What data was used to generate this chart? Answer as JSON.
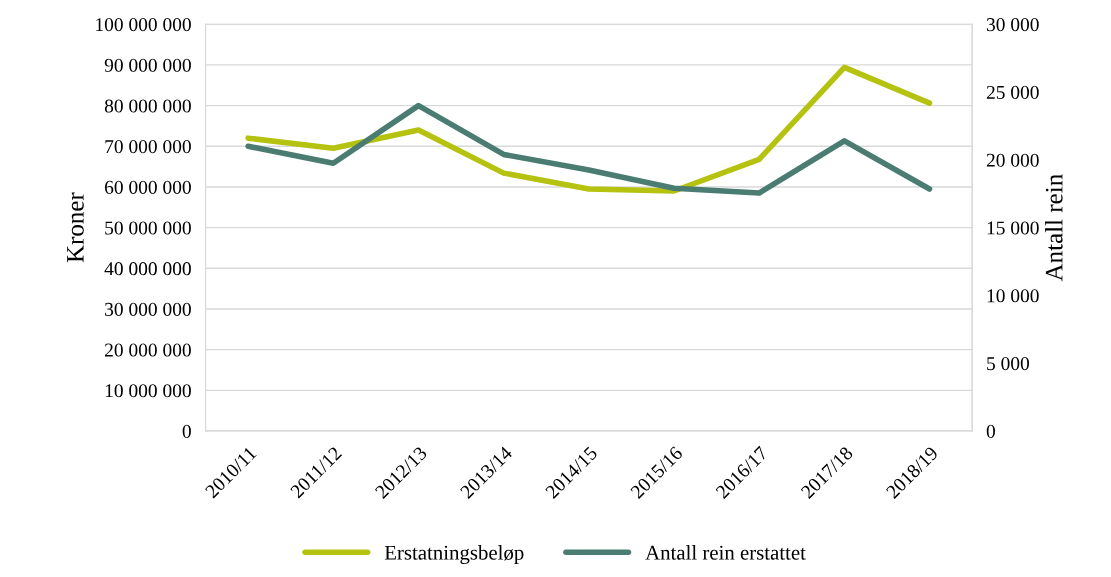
{
  "chart_data": {
    "type": "line",
    "ylabel": "Kroner",
    "y2label": "Antall rein",
    "categories": [
      "2010/11",
      "2011/12",
      "2012/13",
      "2013/14",
      "2014/15",
      "2015/16",
      "2016/17",
      "2017/18",
      "2018/19"
    ],
    "series": [
      {
        "name": "Erstatningsbeløp",
        "color": "#b5c20f",
        "values": [
          72000000,
          69500000,
          74000000,
          63400000,
          59500000,
          59000000,
          66800000,
          89400000,
          80600000
        ]
      },
      {
        "name": "Antall rein erstattet",
        "color": "#4a7c72",
        "axis": "y2",
        "values": [
          21000,
          19750,
          24000,
          20400,
          19250,
          17900,
          17550,
          21400,
          17850
        ]
      }
    ],
    "ylim": [
      0,
      100000000
    ],
    "yticks": [
      0,
      {
        "value": 10000000,
        "label": "10 000 000"
      },
      {
        "value": 20000000,
        "label": "20 000 000"
      },
      {
        "value": 30000000,
        "label": "30 000 000"
      },
      {
        "value": 40000000,
        "label": "40 000 000"
      },
      {
        "value": 50000000,
        "label": "50 000 000"
      },
      {
        "value": 60000000,
        "label": "60 000 000"
      },
      {
        "value": 70000000,
        "label": "70 000 000"
      },
      {
        "value": 80000000,
        "label": "80 000 000"
      },
      {
        "value": 90000000,
        "label": "90 000 000"
      },
      {
        "value": 100000000,
        "label": "100 000 000"
      }
    ],
    "y2lim": [
      0,
      30000
    ],
    "y2ticks": [
      0,
      {
        "value": 5000,
        "label": "5 000"
      },
      {
        "value": 10000,
        "label": "10 000"
      },
      {
        "value": 15000,
        "label": "15 000"
      },
      {
        "value": 20000,
        "label": "20 000"
      },
      {
        "value": 25000,
        "label": "25 000"
      },
      {
        "value": 30000,
        "label": "30 000"
      }
    ],
    "grid": "y",
    "legend": "bottom",
    "marker": "none",
    "line_style": "solid"
  }
}
